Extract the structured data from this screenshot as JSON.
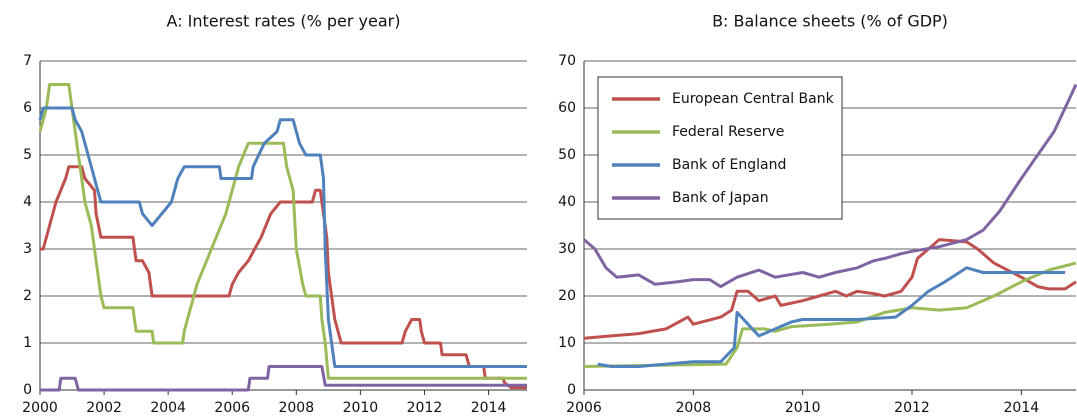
{
  "chart_data": [
    {
      "type": "line",
      "title": "A: Interest rates (% per year)",
      "xlim": [
        2000,
        2015.2
      ],
      "xticks": [
        2000,
        2002,
        2004,
        2006,
        2008,
        2010,
        2012,
        2014
      ],
      "ylim": [
        0,
        7
      ],
      "yticks": [
        0,
        1,
        2,
        3,
        4,
        5,
        6,
        7
      ],
      "grid": true,
      "series": [
        {
          "color": "#c0504d",
          "x": [
            2000.0,
            2000.1,
            2000.3,
            2000.5,
            2000.8,
            2000.9,
            2001.3,
            2001.4,
            2001.7,
            2001.75,
            2001.9,
            2002.9,
            2003.0,
            2003.2,
            2003.4,
            2003.5,
            2005.9,
            2006.0,
            2006.2,
            2006.5,
            2006.7,
            2006.9,
            2007.2,
            2007.5,
            2008.5,
            2008.6,
            2008.75,
            2008.85,
            2008.95,
            2009.0,
            2009.2,
            2009.4,
            2011.3,
            2011.4,
            2011.6,
            2011.85,
            2011.9,
            2012.0,
            2012.5,
            2012.55,
            2013.3,
            2013.4,
            2013.85,
            2013.9,
            2014.45,
            2014.5,
            2014.7,
            2015.2
          ],
          "values": [
            3.0,
            3.0,
            3.5,
            4.0,
            4.5,
            4.75,
            4.75,
            4.5,
            4.25,
            3.75,
            3.25,
            3.25,
            2.75,
            2.75,
            2.5,
            2.0,
            2.0,
            2.25,
            2.5,
            2.75,
            3.0,
            3.25,
            3.75,
            4.0,
            4.0,
            4.25,
            4.25,
            3.75,
            3.25,
            2.5,
            1.5,
            1.0,
            1.0,
            1.25,
            1.5,
            1.5,
            1.25,
            1.0,
            1.0,
            0.75,
            0.75,
            0.5,
            0.5,
            0.25,
            0.25,
            0.15,
            0.05,
            0.05
          ]
        },
        {
          "color": "#9bbb59",
          "x": [
            2000.0,
            2000.1,
            2000.2,
            2000.3,
            2000.9,
            2001.0,
            2001.1,
            2001.2,
            2001.3,
            2001.4,
            2001.5,
            2001.6,
            2001.7,
            2001.8,
            2001.9,
            2002.0,
            2002.9,
            2003.0,
            2003.5,
            2003.55,
            2004.45,
            2004.5,
            2004.7,
            2004.9,
            2005.2,
            2005.5,
            2005.8,
            2006.0,
            2006.2,
            2006.5,
            2007.6,
            2007.7,
            2007.9,
            2008.0,
            2008.2,
            2008.3,
            2008.75,
            2008.8,
            2008.9,
            2009.0,
            2015.2
          ],
          "values": [
            5.5,
            5.75,
            6.0,
            6.5,
            6.5,
            6.0,
            5.5,
            5.0,
            4.5,
            4.0,
            3.75,
            3.5,
            3.0,
            2.5,
            2.0,
            1.75,
            1.75,
            1.25,
            1.25,
            1.0,
            1.0,
            1.25,
            1.75,
            2.25,
            2.75,
            3.25,
            3.75,
            4.25,
            4.75,
            5.25,
            5.25,
            4.75,
            4.25,
            3.0,
            2.25,
            2.0,
            2.0,
            1.5,
            1.0,
            0.25,
            0.25
          ]
        },
        {
          "color": "#4f81bd",
          "x": [
            2000.0,
            2000.1,
            2001.0,
            2001.1,
            2001.3,
            2001.5,
            2001.7,
            2001.9,
            2003.1,
            2003.2,
            2003.5,
            2003.8,
            2004.1,
            2004.3,
            2004.5,
            2005.6,
            2005.65,
            2006.6,
            2006.65,
            2007.0,
            2007.4,
            2007.5,
            2007.9,
            2008.0,
            2008.1,
            2008.3,
            2008.75,
            2008.85,
            2008.9,
            2009.0,
            2009.1,
            2009.2,
            2015.2
          ],
          "values": [
            5.75,
            6.0,
            6.0,
            5.75,
            5.5,
            5.0,
            4.5,
            4.0,
            4.0,
            3.75,
            3.5,
            3.75,
            4.0,
            4.5,
            4.75,
            4.75,
            4.5,
            4.5,
            4.75,
            5.25,
            5.5,
            5.75,
            5.75,
            5.5,
            5.25,
            5.0,
            5.0,
            4.5,
            3.0,
            1.5,
            1.0,
            0.5,
            0.5
          ]
        },
        {
          "color": "#8064a2",
          "x": [
            2000.0,
            2000.6,
            2000.65,
            2001.1,
            2001.2,
            2006.5,
            2006.55,
            2007.1,
            2007.15,
            2008.8,
            2008.9,
            2015.2
          ],
          "values": [
            0,
            0,
            0.25,
            0.25,
            0,
            0,
            0.25,
            0.25,
            0.5,
            0.5,
            0.1,
            0.1
          ]
        }
      ]
    },
    {
      "type": "line",
      "title": "B: Balance sheets (% of GDP)",
      "xlim": [
        2006,
        2015
      ],
      "xticks": [
        2006,
        2008,
        2010,
        2012,
        2014
      ],
      "ylim": [
        0,
        70
      ],
      "yticks": [
        0,
        10,
        20,
        30,
        40,
        50,
        60,
        70
      ],
      "grid": true,
      "legend": "upper left",
      "series": [
        {
          "name": "European Central Bank",
          "color": "#c0504d",
          "x": [
            2006,
            2006.5,
            2007,
            2007.5,
            2007.9,
            2008,
            2008.5,
            2008.7,
            2008.8,
            2009,
            2009.2,
            2009.5,
            2009.6,
            2010,
            2010.3,
            2010.6,
            2010.8,
            2011,
            2011.3,
            2011.5,
            2011.8,
            2012,
            2012.1,
            2012.3,
            2012.5,
            2013,
            2013.2,
            2013.5,
            2014,
            2014.3,
            2014.5,
            2014.8,
            2015
          ],
          "values": [
            11,
            11.5,
            12,
            13,
            15.5,
            14,
            15.5,
            17,
            21,
            21,
            19,
            20,
            18,
            19,
            20,
            21,
            20,
            21,
            20.5,
            20,
            21,
            24,
            28,
            30,
            32,
            31.5,
            30,
            27,
            24,
            22,
            21.5,
            21.5,
            23
          ]
        },
        {
          "name": "Federal Reserve",
          "color": "#9bbb59",
          "x": [
            2006,
            2008.6,
            2008.8,
            2008.9,
            2009.3,
            2009.5,
            2009.8,
            2010.5,
            2011,
            2011.5,
            2012,
            2012.5,
            2013,
            2013.5,
            2014,
            2014.5,
            2015
          ],
          "values": [
            5,
            5.5,
            9,
            13,
            13,
            12.5,
            13.5,
            14,
            14.5,
            16.5,
            17.5,
            17,
            17.5,
            20,
            23,
            25.5,
            27
          ]
        },
        {
          "name": "Bank of England",
          "color": "#4f81bd",
          "x": [
            2006.25,
            2006.5,
            2007,
            2007.5,
            2008,
            2008.5,
            2008.75,
            2008.8,
            2009,
            2009.2,
            2009.5,
            2009.8,
            2010,
            2011,
            2011.7,
            2012,
            2012.3,
            2012.6,
            2013,
            2013.3,
            2014,
            2014.8
          ],
          "values": [
            5.5,
            5,
            5,
            5.5,
            6,
            6,
            9,
            16.5,
            14,
            11.5,
            13,
            14.5,
            15,
            15,
            15.5,
            18,
            21,
            23,
            26,
            25,
            25,
            25
          ]
        },
        {
          "name": "Bank of Japan",
          "color": "#8064a2",
          "x": [
            2006,
            2006.2,
            2006.4,
            2006.6,
            2007,
            2007.3,
            2007.7,
            2008,
            2008.3,
            2008.5,
            2008.8,
            2009.2,
            2009.5,
            2010,
            2010.3,
            2010.6,
            2011,
            2011.3,
            2011.5,
            2011.8,
            2012,
            2012.5,
            2013,
            2013.3,
            2013.6,
            2014,
            2014.3,
            2014.6,
            2014.8,
            2015
          ],
          "values": [
            32,
            30,
            26,
            24,
            24.5,
            22.5,
            23,
            23.5,
            23.5,
            22,
            24,
            25.5,
            24,
            25,
            24,
            25,
            26,
            27.5,
            28,
            29,
            29.5,
            30.5,
            32,
            34,
            38,
            45,
            50,
            55,
            60,
            65
          ]
        }
      ]
    }
  ]
}
